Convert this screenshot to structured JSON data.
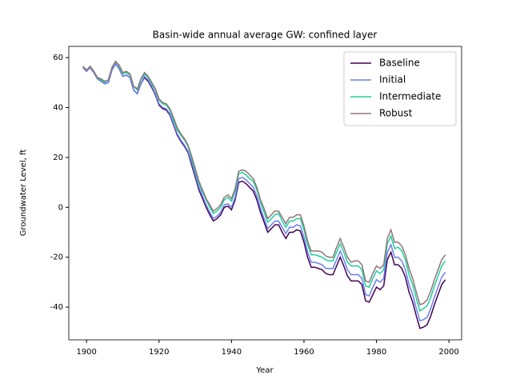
{
  "chart_data": {
    "type": "line",
    "title": "Basin-wide annual average GW: confined layer",
    "xlabel": "Year",
    "ylabel": "Groundwater Level, ft",
    "x": [
      1899,
      1900,
      1901,
      1902,
      1903,
      1904,
      1905,
      1906,
      1907,
      1908,
      1909,
      1910,
      1911,
      1912,
      1913,
      1914,
      1915,
      1916,
      1917,
      1918,
      1919,
      1920,
      1921,
      1922,
      1923,
      1924,
      1925,
      1926,
      1927,
      1928,
      1929,
      1930,
      1931,
      1932,
      1933,
      1934,
      1935,
      1936,
      1937,
      1938,
      1939,
      1940,
      1941,
      1942,
      1943,
      1944,
      1945,
      1946,
      1947,
      1948,
      1949,
      1950,
      1951,
      1952,
      1953,
      1954,
      1955,
      1956,
      1957,
      1958,
      1959,
      1960,
      1961,
      1962,
      1963,
      1964,
      1965,
      1966,
      1967,
      1968,
      1969,
      1970,
      1971,
      1972,
      1973,
      1974,
      1975,
      1976,
      1977,
      1978,
      1979,
      1980,
      1981,
      1982,
      1983,
      1984,
      1985,
      1986,
      1987,
      1988,
      1989,
      1990,
      1991,
      1992,
      1993,
      1994,
      1995,
      1996,
      1997,
      1998,
      1999
    ],
    "series": [
      {
        "name": "Baseline",
        "color": "#440154",
        "values": [
          56,
          54.5,
          56,
          54,
          51.5,
          50.5,
          49.5,
          50,
          55,
          57.5,
          55.5,
          52.5,
          53,
          52,
          47,
          45.5,
          49.5,
          52,
          50.5,
          48,
          45,
          41,
          39.5,
          39,
          37,
          33,
          29,
          26.5,
          24.5,
          22,
          17,
          12,
          7,
          3.5,
          0,
          -3,
          -5.5,
          -4.5,
          -3,
          0,
          0.5,
          -1,
          3,
          10,
          10.5,
          9.5,
          8,
          6.5,
          3,
          -2,
          -6,
          -10,
          -8.5,
          -7,
          -7,
          -10,
          -12.5,
          -10,
          -10,
          -9,
          -9.5,
          -14,
          -20,
          -24,
          -24,
          -24.5,
          -25,
          -26.5,
          -27,
          -27,
          -23.5,
          -20,
          -23.5,
          -27.5,
          -29.5,
          -29.5,
          -29.5,
          -31,
          -37.5,
          -38,
          -35,
          -32,
          -33,
          -31.5,
          -21,
          -18,
          -23,
          -23,
          -24.5,
          -28,
          -34,
          -38,
          -43.5,
          -48.5,
          -48,
          -47,
          -43.5,
          -39,
          -35,
          -31,
          -29
        ]
      },
      {
        "name": "Initial",
        "color": "#6a7ff0",
        "values": [
          56,
          54.5,
          56,
          54,
          51.5,
          50.5,
          49.5,
          50,
          55,
          57.5,
          55.5,
          52.5,
          53,
          52,
          47,
          45.5,
          49.5,
          52.5,
          51,
          48.5,
          45.5,
          41.5,
          40,
          39.5,
          37.5,
          33.5,
          29.5,
          27,
          25,
          22.5,
          18,
          13,
          8,
          4.5,
          1,
          -2,
          -4.5,
          -3.5,
          -2,
          1,
          1.5,
          0,
          4,
          11.5,
          12,
          11,
          9.5,
          8,
          4.5,
          -0.5,
          -4.5,
          -8.5,
          -7,
          -5.5,
          -5.5,
          -8,
          -10.5,
          -8,
          -8,
          -7,
          -7.5,
          -12,
          -18,
          -22,
          -22,
          -22.5,
          -23,
          -24.5,
          -24.5,
          -24.5,
          -21,
          -17.5,
          -21,
          -25,
          -27,
          -27,
          -27,
          -28.5,
          -35,
          -35.5,
          -32,
          -29,
          -30,
          -28.5,
          -18,
          -15,
          -20,
          -20,
          -21.5,
          -25,
          -31,
          -35,
          -40.5,
          -45.5,
          -45,
          -44,
          -40.5,
          -36,
          -32,
          -28,
          -26
        ]
      },
      {
        "name": "Intermediate",
        "color": "#1fcf9f",
        "values": [
          56.5,
          55,
          56.5,
          54.5,
          52,
          51,
          50,
          51,
          56,
          58.5,
          56.5,
          53.5,
          54,
          53,
          48.5,
          47,
          51,
          53.5,
          52,
          49.5,
          47,
          43,
          41.5,
          41,
          39,
          35,
          31,
          29,
          27,
          24.5,
          19.5,
          14.5,
          9.5,
          6,
          3,
          0,
          -2.5,
          -1.5,
          0,
          3,
          4,
          2.5,
          6.5,
          13.5,
          14,
          13,
          11.5,
          10.5,
          7,
          2,
          -2,
          -6,
          -4.5,
          -3,
          -2.5,
          -5.5,
          -8,
          -5.5,
          -5.5,
          -4.5,
          -4.5,
          -9,
          -15,
          -19,
          -19,
          -19.5,
          -20,
          -21,
          -21.5,
          -21.5,
          -18,
          -14.5,
          -18,
          -22,
          -23.5,
          -23.5,
          -23.5,
          -25,
          -31.5,
          -32,
          -28.5,
          -25.5,
          -26.5,
          -25,
          -14.5,
          -11.5,
          -16.5,
          -16,
          -17.5,
          -21,
          -27,
          -31,
          -36.5,
          -41.5,
          -40.5,
          -39.5,
          -36,
          -31.5,
          -27.5,
          -23.5,
          -21.5
        ]
      },
      {
        "name": "Robust",
        "color": "#8f7676",
        "values": [
          56.5,
          55,
          56.5,
          54.5,
          52,
          51.5,
          50.5,
          51,
          56,
          58.5,
          57,
          54,
          54.5,
          53.5,
          48.5,
          47.5,
          51.5,
          54,
          52.5,
          50,
          47.5,
          43.5,
          42,
          41.5,
          39.5,
          36,
          32,
          29.5,
          27.5,
          25,
          20.5,
          15.5,
          10.5,
          7,
          3.5,
          1,
          -1.5,
          -0.5,
          1,
          4,
          5,
          3.5,
          7.5,
          14.5,
          15,
          14.5,
          13,
          11.5,
          8,
          3,
          -0.5,
          -4.5,
          -3,
          -1.5,
          -1.5,
          -4,
          -6.5,
          -4,
          -4,
          -3,
          -3,
          -7.5,
          -13.5,
          -17.5,
          -17.5,
          -17.5,
          -18,
          -19.5,
          -20,
          -20,
          -16,
          -12.5,
          -16,
          -20,
          -22,
          -21.5,
          -21.5,
          -23,
          -29.5,
          -30,
          -26.5,
          -23.5,
          -24.5,
          -23,
          -12.5,
          -9,
          -14,
          -14,
          -15.5,
          -19,
          -24.5,
          -28.5,
          -34,
          -39,
          -38.5,
          -37,
          -33.5,
          -29,
          -25,
          -21,
          -19
        ]
      }
    ],
    "xlim": [
      1895.1,
      2003.5
    ],
    "xticks": [
      1900,
      1920,
      1940,
      1960,
      1980,
      2000
    ],
    "ylim": [
      -53.1,
      64.5
    ],
    "yticks": [
      -40,
      -20,
      0,
      20,
      40,
      60
    ],
    "legend": "upper right",
    "grid": false
  }
}
